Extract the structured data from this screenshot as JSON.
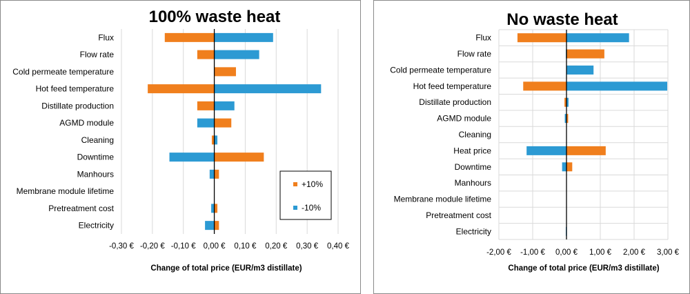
{
  "colors": {
    "plus": "#F07F1D",
    "minus": "#2C9AD3",
    "grid": "#D9D9D9",
    "axis": "#000000",
    "frame": "#888888"
  },
  "chart_data": [
    {
      "type": "bar",
      "orientation": "horizontal",
      "title": "100% waste heat",
      "xlabel": "Change of total price (EUR/m3 distillate)",
      "ylabel": "",
      "xlim": [
        -0.3,
        0.4
      ],
      "ticks": [
        -0.3,
        -0.2,
        -0.1,
        0.0,
        0.1,
        0.2,
        0.3,
        0.4
      ],
      "tick_labels": [
        "-0,30 €",
        "-0,20 €",
        "-0,10 €",
        "0,00 €",
        "0,10 €",
        "0,20 €",
        "0,30 €",
        "0,40 €"
      ],
      "categories": [
        "Flux",
        "Flow rate",
        "Cold permeate temperature",
        "Hot feed temperature",
        "Distillate production",
        "AGMD module",
        "Cleaning",
        "Downtime",
        "Manhours",
        "Membrane module lifetime",
        "Pretreatment cost",
        "Electricity"
      ],
      "series": [
        {
          "name": "+10%",
          "color": "#F07F1D",
          "values": [
            -0.16,
            -0.055,
            0.07,
            -0.215,
            -0.055,
            0.055,
            -0.008,
            0.16,
            0.015,
            0.0,
            0.01,
            0.015
          ]
        },
        {
          "name": "-10%",
          "color": "#2C9AD3",
          "values": [
            0.19,
            0.145,
            0.0,
            0.345,
            0.065,
            -0.055,
            0.01,
            -0.145,
            -0.015,
            0.0,
            -0.01,
            -0.03
          ]
        }
      ],
      "legend": {
        "position": "right",
        "entries": [
          "+10%",
          "-10%"
        ]
      }
    },
    {
      "type": "bar",
      "orientation": "horizontal",
      "title": "No waste heat",
      "xlabel": "Change of total price (EUR/m3 distillate)",
      "ylabel": "",
      "xlim": [
        -2.0,
        3.0
      ],
      "ticks": [
        -2.0,
        -1.0,
        0.0,
        1.0,
        2.0,
        3.0
      ],
      "tick_labels": [
        "-2,00 €",
        "-1,00 €",
        "0,00 €",
        "1,00 €",
        "2,00 €",
        "3,00 €"
      ],
      "categories": [
        "Flux",
        "Flow rate",
        "Cold permeate temperature",
        "Hot feed temperature",
        "Distillate production",
        "AGMD module",
        "Cleaning",
        "Heat price",
        "Downtime",
        "Manhours",
        "Membrane module lifetime",
        "Pretreatment cost",
        "Electricity"
      ],
      "series": [
        {
          "name": "+10%",
          "color": "#F07F1D",
          "values": [
            -1.45,
            1.12,
            0.32,
            -1.28,
            -0.06,
            0.05,
            0.0,
            1.16,
            0.17,
            0.0,
            0.0,
            0.0,
            0.0
          ]
        },
        {
          "name": "-10%",
          "color": "#2C9AD3",
          "values": [
            1.85,
            -0.02,
            0.8,
            2.98,
            0.06,
            -0.05,
            0.0,
            -1.18,
            -0.13,
            0.0,
            0.0,
            0.0,
            -0.02
          ]
        }
      ]
    }
  ]
}
